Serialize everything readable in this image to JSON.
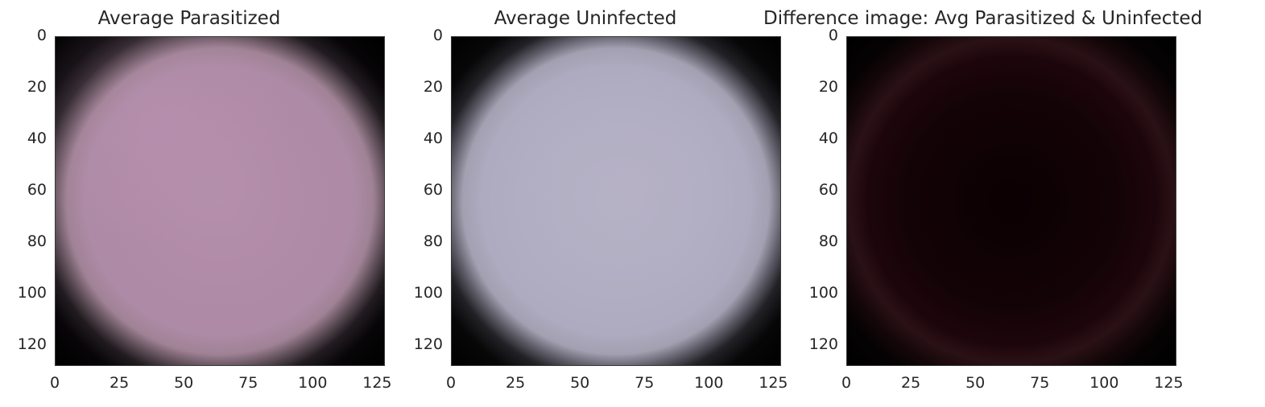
{
  "chart_data": [
    {
      "type": "image",
      "title": "Average Parasitized",
      "xlim": [
        0,
        128
      ],
      "ylim": [
        128,
        0
      ],
      "xticks": [
        "0",
        "25",
        "50",
        "75",
        "100",
        "125"
      ],
      "yticks": [
        "0",
        "20",
        "40",
        "60",
        "80",
        "100",
        "120"
      ],
      "xtick_values": [
        0,
        25,
        50,
        75,
        100,
        125
      ],
      "ytick_values": [
        0,
        20,
        40,
        60,
        80,
        100,
        120
      ],
      "dominant_color": "#b08ba8",
      "background_color": "#000000"
    },
    {
      "type": "image",
      "title": "Average Uninfected",
      "xlim": [
        0,
        128
      ],
      "ylim": [
        128,
        0
      ],
      "xticks": [
        "0",
        "25",
        "50",
        "75",
        "100",
        "125"
      ],
      "yticks": [
        "0",
        "20",
        "40",
        "60",
        "80",
        "100",
        "120"
      ],
      "xtick_values": [
        0,
        25,
        50,
        75,
        100,
        125
      ],
      "ytick_values": [
        0,
        20,
        40,
        60,
        80,
        100,
        120
      ],
      "dominant_color": "#b1adc2",
      "background_color": "#000000"
    },
    {
      "type": "image",
      "title": "Difference image: Avg Parasitized & Uninfected",
      "xlim": [
        0,
        128
      ],
      "ylim": [
        128,
        0
      ],
      "xticks": [
        "0",
        "25",
        "50",
        "75",
        "100",
        "125"
      ],
      "yticks": [
        "0",
        "20",
        "40",
        "60",
        "80",
        "100",
        "120"
      ],
      "xtick_values": [
        0,
        25,
        50,
        75,
        100,
        125
      ],
      "ytick_values": [
        0,
        20,
        40,
        60,
        80,
        100,
        120
      ],
      "dominant_color": "#130306",
      "background_color": "#000000"
    }
  ]
}
